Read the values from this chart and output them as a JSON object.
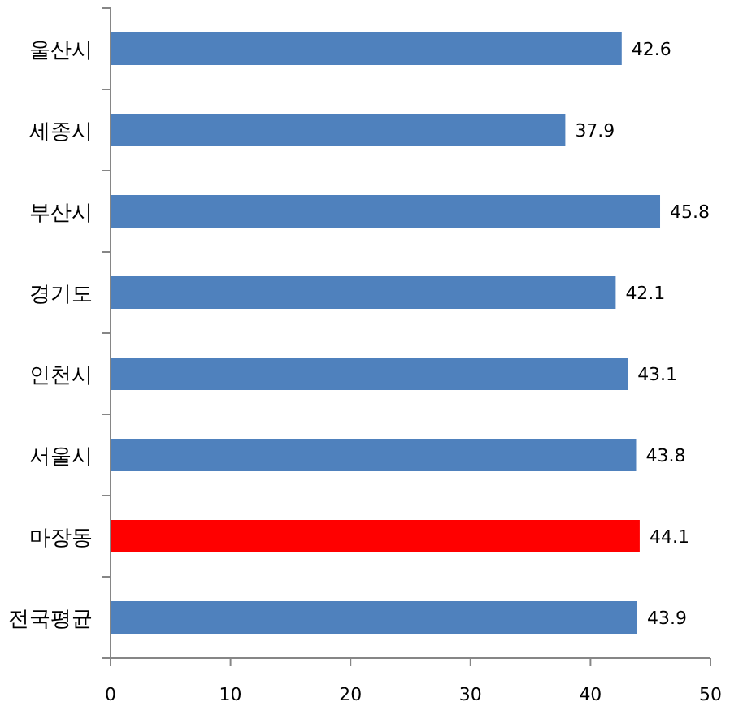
{
  "chart_data": {
    "type": "bar",
    "orientation": "horizontal",
    "categories": [
      "울산시",
      "세종시",
      "부산시",
      "경기도",
      "인천시",
      "서울시",
      "마장동",
      "전국평균"
    ],
    "values": [
      42.6,
      37.9,
      45.8,
      42.1,
      43.1,
      43.8,
      44.1,
      43.9
    ],
    "colors": [
      "#4f81bd",
      "#4f81bd",
      "#4f81bd",
      "#4f81bd",
      "#4f81bd",
      "#4f81bd",
      "#ff0000",
      "#4f81bd"
    ],
    "xlim": [
      0,
      50
    ],
    "xticks": [
      0,
      10,
      20,
      30,
      40,
      50
    ],
    "data_labels": true
  }
}
